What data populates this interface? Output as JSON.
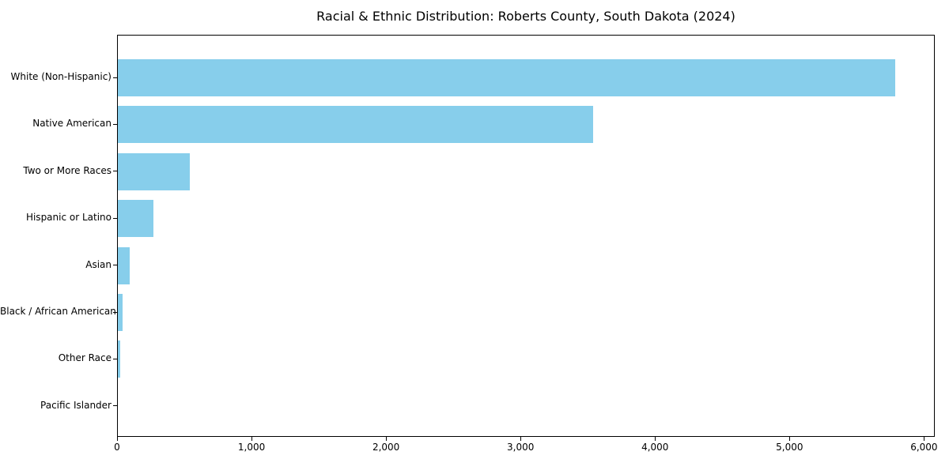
{
  "chart_data": {
    "type": "bar",
    "orientation": "horizontal",
    "title": "Racial & Ethnic Distribution: Roberts County, South Dakota (2024)",
    "categories": [
      "White (Non-Hispanic)",
      "Native American",
      "Two or More Races",
      "Hispanic or Latino",
      "Asian",
      "Black / African American",
      "Other Race",
      "Pacific Islander"
    ],
    "values": [
      5780,
      3535,
      535,
      265,
      88,
      35,
      18,
      0
    ],
    "xlabel": "",
    "ylabel": "",
    "xlim": [
      0,
      6080
    ],
    "x_tick_values": [
      0,
      1000,
      2000,
      3000,
      4000,
      5000,
      6000
    ],
    "x_tick_labels": [
      "0",
      "1,000",
      "2,000",
      "3,000",
      "4,000",
      "5,000",
      "6,000"
    ],
    "bar_color": "#87CEEB",
    "axis_color": "#000000",
    "text_color": "#000000",
    "grid": false,
    "legend": "none"
  }
}
